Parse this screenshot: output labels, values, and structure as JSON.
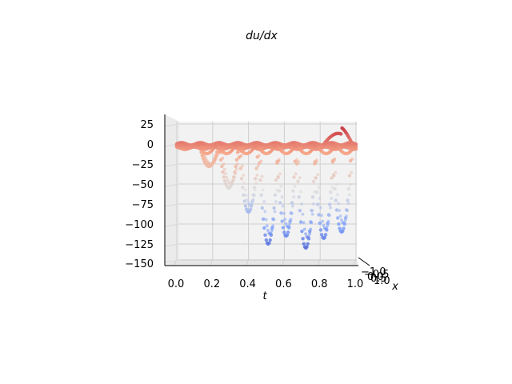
{
  "chart_data": {
    "type": "scatter",
    "projection": "3d",
    "title": "du/dx",
    "xlabel": "t",
    "ylabel": "x",
    "zlabel": "",
    "t_ticks": [
      "0.0",
      "0.2",
      "0.4",
      "0.6",
      "0.8",
      "1.0"
    ],
    "x_ticks": [
      "−1.0",
      "−0.5",
      "0.0",
      "0.5",
      "1.0"
    ],
    "z_ticks": [
      "25",
      "0",
      "−25",
      "−50",
      "−75",
      "−100",
      "−125",
      "−150"
    ],
    "t_range": [
      0,
      1
    ],
    "x_range": [
      -1,
      1
    ],
    "z_range": [
      -150,
      35
    ],
    "grid": true,
    "colormap": "coolwarm",
    "baseline_value": 0,
    "dip_minima": [
      {
        "t": 0.18,
        "z": -28
      },
      {
        "t": 0.29,
        "z": -55
      },
      {
        "t": 0.4,
        "z": -85
      },
      {
        "t": 0.51,
        "z": -125
      },
      {
        "t": 0.61,
        "z": -115
      },
      {
        "t": 0.72,
        "z": -130
      },
      {
        "t": 0.82,
        "z": -118
      },
      {
        "t": 0.92,
        "z": -110
      }
    ],
    "upper_feature": {
      "t_start": 0.82,
      "t_end": 0.98,
      "z_peak": 22
    }
  }
}
